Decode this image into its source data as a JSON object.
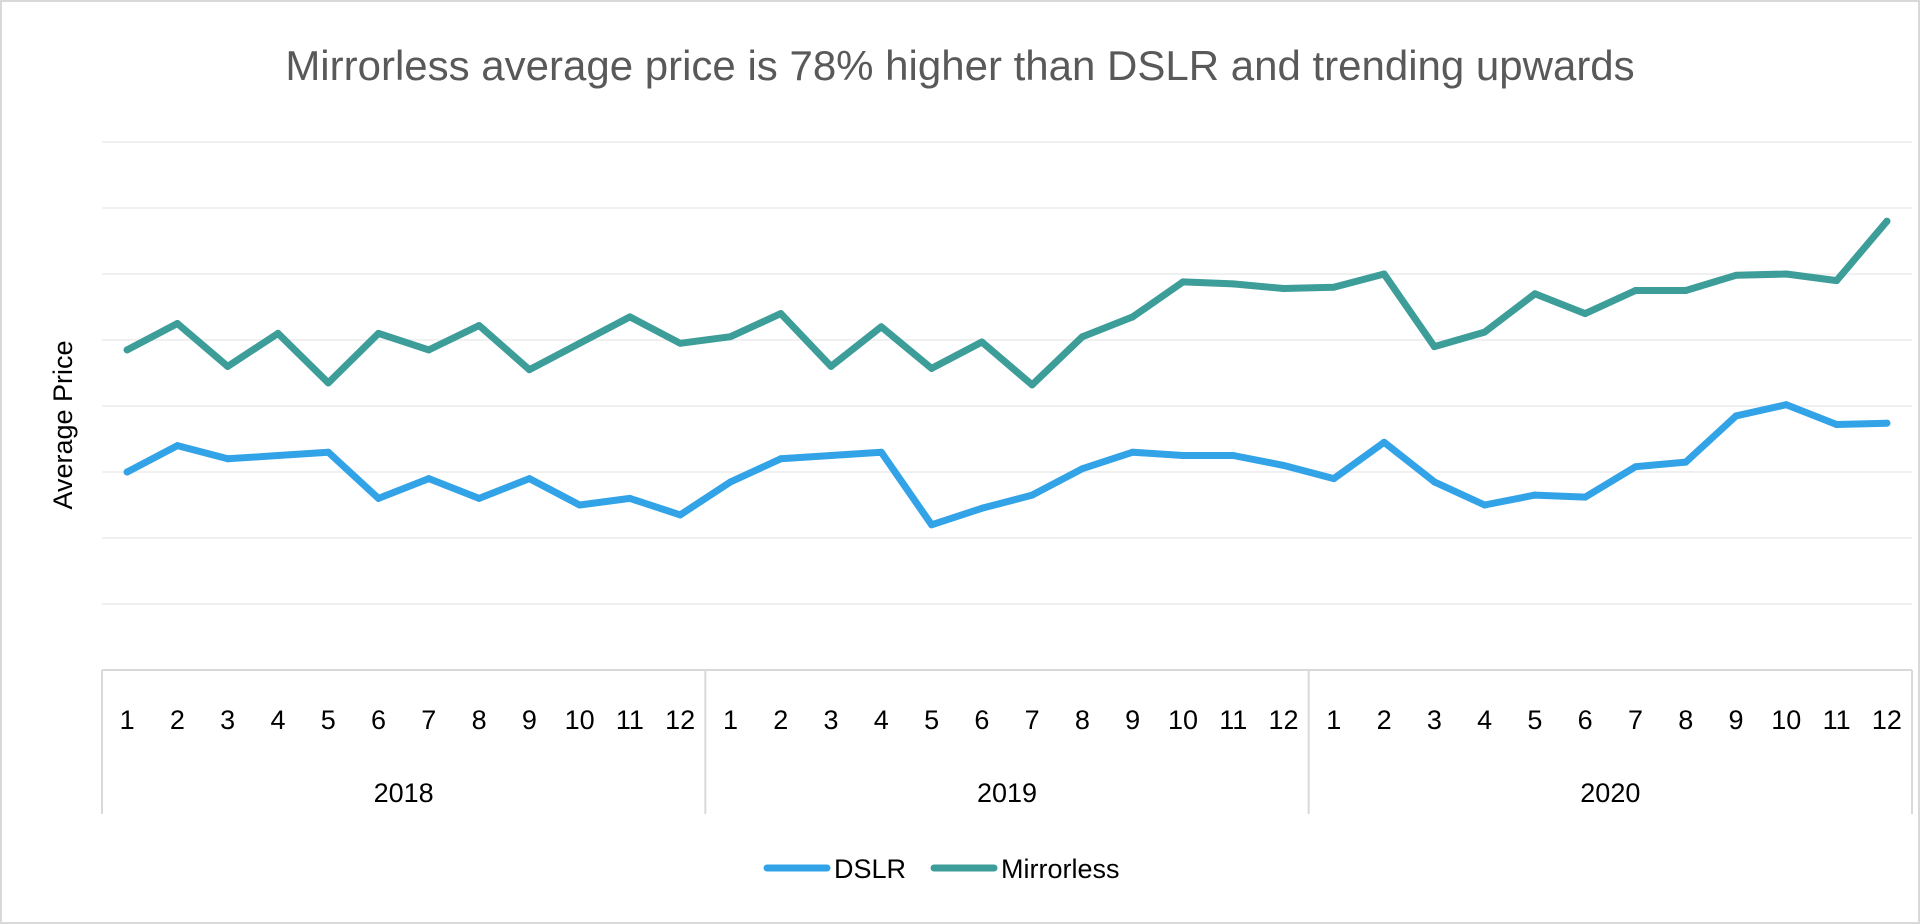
{
  "chart_data": {
    "type": "line",
    "title": "Mirrorless average price is 78% higher than DSLR and trending upwards",
    "ylabel": "Average Price",
    "xlabel": "",
    "categories": [
      "1",
      "2",
      "3",
      "4",
      "5",
      "6",
      "7",
      "8",
      "9",
      "10",
      "11",
      "12",
      "1",
      "2",
      "3",
      "4",
      "5",
      "6",
      "7",
      "8",
      "9",
      "10",
      "11",
      "12",
      "1",
      "2",
      "3",
      "4",
      "5",
      "6",
      "7",
      "8",
      "9",
      "10",
      "11",
      "12"
    ],
    "groups": [
      {
        "label": "2018",
        "count": 12
      },
      {
        "label": "2019",
        "count": 12
      },
      {
        "label": "2020",
        "count": 12
      }
    ],
    "ylim": [
      0,
      8
    ],
    "y_gridlines": 8,
    "grid": true,
    "legend_position": "bottom",
    "series": [
      {
        "name": "DSLR",
        "color": "#33a3e8",
        "values": [
          3.0,
          3.4,
          3.2,
          3.25,
          3.3,
          2.6,
          2.9,
          2.6,
          2.9,
          2.5,
          2.6,
          2.35,
          2.85,
          3.2,
          3.25,
          3.3,
          2.2,
          2.45,
          2.65,
          3.05,
          3.3,
          3.25,
          3.25,
          3.1,
          2.9,
          3.45,
          2.85,
          2.5,
          2.65,
          2.62,
          3.08,
          3.15,
          3.85,
          4.02,
          3.72,
          3.74
        ]
      },
      {
        "name": "Mirrorless",
        "color": "#3c9d99",
        "values": [
          4.85,
          5.25,
          4.6,
          5.1,
          4.35,
          5.1,
          4.85,
          5.22,
          4.55,
          4.95,
          5.35,
          4.95,
          5.05,
          5.4,
          4.6,
          5.2,
          4.57,
          4.97,
          4.32,
          5.05,
          5.35,
          5.88,
          5.85,
          5.78,
          5.8,
          6.0,
          4.9,
          5.12,
          5.7,
          5.4,
          5.75,
          5.75,
          5.98,
          6.0,
          5.9,
          6.8
        ]
      }
    ]
  }
}
